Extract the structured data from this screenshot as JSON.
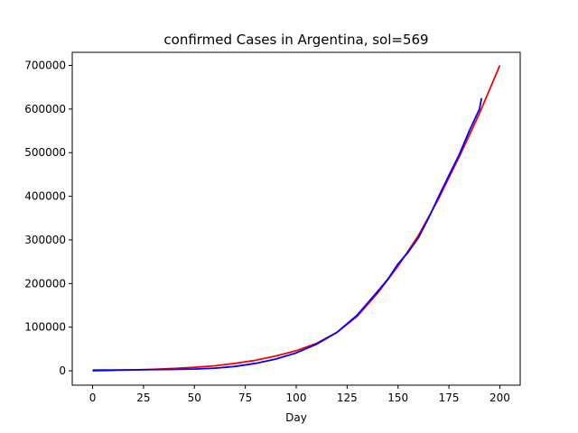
{
  "chart_data": {
    "type": "line",
    "title": "confirmed Cases in Argentina, sol=569",
    "xlabel": "Day",
    "ylabel": "",
    "xlim": [
      -10,
      210
    ],
    "ylim": [
      -33000,
      730000
    ],
    "x_ticks": [
      0,
      25,
      50,
      75,
      100,
      125,
      150,
      175,
      200
    ],
    "y_ticks": [
      0,
      100000,
      200000,
      300000,
      400000,
      500000,
      600000,
      700000
    ],
    "grid": false,
    "legend": "none",
    "series": [
      {
        "color": "#ff0000",
        "x": [
          0,
          10,
          20,
          30,
          40,
          50,
          60,
          70,
          80,
          90,
          100,
          110,
          120,
          130,
          140,
          150,
          160,
          170,
          180,
          190,
          200
        ],
        "values": [
          0,
          1000,
          2000,
          3500,
          5500,
          8000,
          11500,
          17000,
          24000,
          34000,
          46000,
          63000,
          88000,
          125000,
          178000,
          240000,
          310000,
          395000,
          490000,
          590000,
          700000
        ]
      },
      {
        "color": "#0000ff",
        "x": [
          0,
          10,
          20,
          30,
          40,
          50,
          60,
          70,
          80,
          90,
          100,
          110,
          120,
          130,
          135,
          140,
          145,
          150,
          155,
          160,
          165,
          170,
          175,
          180,
          185,
          190,
          191
        ],
        "values": [
          1500,
          1800,
          2200,
          2700,
          3200,
          4000,
          6000,
          10000,
          17000,
          27000,
          41000,
          61000,
          88000,
          128000,
          155000,
          182000,
          210000,
          245000,
          272000,
          305000,
          350000,
          400000,
          448000,
          495000,
          550000,
          600000,
          625000
        ]
      }
    ]
  }
}
